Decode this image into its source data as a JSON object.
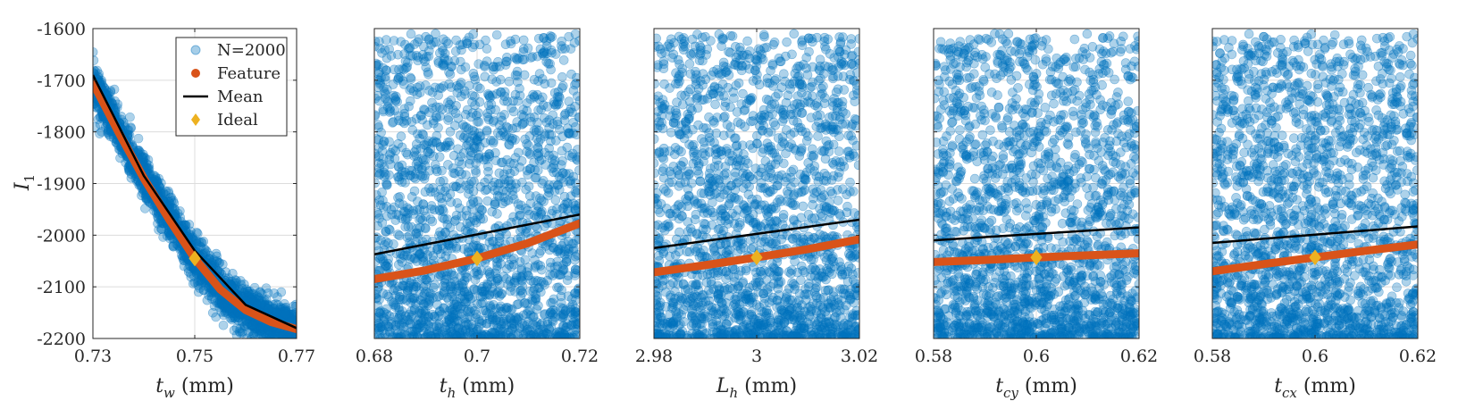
{
  "figure": {
    "ylabel": "I",
    "ylabel_sub": "1",
    "colors": {
      "samples": "#0072BD",
      "feature": "#D95319",
      "mean": "#000000",
      "ideal": "#EDB120",
      "grid": "#dcdcdc",
      "axis": "#262626"
    }
  },
  "legend": {
    "items": [
      {
        "label": "N=2000",
        "marker": "circle"
      },
      {
        "label": "Feature",
        "marker": "dot"
      },
      {
        "label": "Mean",
        "marker": "line"
      },
      {
        "label": "Ideal",
        "marker": "diamond"
      }
    ]
  },
  "chart_data": [
    {
      "type": "scatter",
      "name": "t_w",
      "xlabel_var": "t",
      "xlabel_sub": "w",
      "xlabel_unit": "(mm)",
      "xlim": [
        0.73,
        0.77
      ],
      "ylim": [
        -2200,
        -1600
      ],
      "xticks": [
        "0.73",
        "0.75",
        "0.77"
      ],
      "yticks": [
        "-1600",
        "-1700",
        "-1800",
        "-1900",
        "-2000",
        "-2100",
        "-2200"
      ],
      "samples": {
        "count": 2000,
        "distribution": "concentrated along feature curve"
      },
      "feature": {
        "x": [
          0.73,
          0.735,
          0.74,
          0.745,
          0.75,
          0.755,
          0.76,
          0.765,
          0.77
        ],
        "y": [
          -1705,
          -1800,
          -1890,
          -1970,
          -2045,
          -2105,
          -2145,
          -2168,
          -2182
        ]
      },
      "mean": {
        "x": [
          0.73,
          0.74,
          0.75,
          0.76,
          0.77
        ],
        "y": [
          -1690,
          -1885,
          -2030,
          -2135,
          -2180
        ]
      },
      "ideal": {
        "x": 0.75,
        "y": -2045
      }
    },
    {
      "type": "scatter",
      "name": "t_h",
      "xlabel_var": "t",
      "xlabel_sub": "h",
      "xlabel_unit": "(mm)",
      "xlim": [
        0.68,
        0.72
      ],
      "ylim": [
        -2200,
        -1600
      ],
      "xticks": [
        "0.68",
        "0.7",
        "0.72"
      ],
      "samples": {
        "count": 2000,
        "distribution": "dense near bottom, sparse toward top"
      },
      "feature": {
        "x": [
          0.68,
          0.69,
          0.7,
          0.71,
          0.72
        ],
        "y": [
          -2085,
          -2068,
          -2045,
          -2015,
          -1977
        ]
      },
      "mean": {
        "x": [
          0.68,
          0.72
        ],
        "y": [
          -2037,
          -1960
        ]
      },
      "ideal": {
        "x": 0.7,
        "y": -2045
      }
    },
    {
      "type": "scatter",
      "name": "L_h",
      "xlabel_var": "L",
      "xlabel_sub": "h",
      "xlabel_unit": "(mm)",
      "xlim": [
        2.98,
        3.02
      ],
      "ylim": [
        -2200,
        -1600
      ],
      "xticks": [
        "2.98",
        "3",
        "3.02"
      ],
      "samples": {
        "count": 2000,
        "distribution": "dense near bottom, sparse toward top"
      },
      "feature": {
        "x": [
          2.98,
          2.99,
          3.0,
          3.01,
          3.02
        ],
        "y": [
          -2072,
          -2058,
          -2043,
          -2027,
          -2008
        ]
      },
      "mean": {
        "x": [
          2.98,
          3.02
        ],
        "y": [
          -2025,
          -1970
        ]
      },
      "ideal": {
        "x": 3.0,
        "y": -2043
      }
    },
    {
      "type": "scatter",
      "name": "t_cy",
      "xlabel_var": "t",
      "xlabel_sub": "cy",
      "xlabel_unit": "(mm)",
      "xlim": [
        0.58,
        0.62
      ],
      "ylim": [
        -2200,
        -1600
      ],
      "xticks": [
        "0.58",
        "0.6",
        "0.62"
      ],
      "samples": {
        "count": 2000,
        "distribution": "dense near bottom, sparse toward top"
      },
      "feature": {
        "x": [
          0.58,
          0.59,
          0.6,
          0.61,
          0.62
        ],
        "y": [
          -2052,
          -2048,
          -2043,
          -2039,
          -2035
        ]
      },
      "mean": {
        "x": [
          0.58,
          0.62
        ],
        "y": [
          -2010,
          -1985
        ]
      },
      "ideal": {
        "x": 0.6,
        "y": -2043
      }
    },
    {
      "type": "scatter",
      "name": "t_cx",
      "xlabel_var": "t",
      "xlabel_sub": "cx",
      "xlabel_unit": "(mm)",
      "xlim": [
        0.58,
        0.62
      ],
      "ylim": [
        -2200,
        -1600
      ],
      "xticks": [
        "0.58",
        "0.6",
        "0.62"
      ],
      "samples": {
        "count": 2000,
        "distribution": "dense near bottom, sparse toward top"
      },
      "feature": {
        "x": [
          0.58,
          0.59,
          0.6,
          0.61,
          0.62
        ],
        "y": [
          -2070,
          -2056,
          -2043,
          -2030,
          -2018
        ]
      },
      "mean": {
        "x": [
          0.58,
          0.62
        ],
        "y": [
          -2015,
          -1983
        ]
      },
      "ideal": {
        "x": 0.6,
        "y": -2043
      }
    }
  ]
}
